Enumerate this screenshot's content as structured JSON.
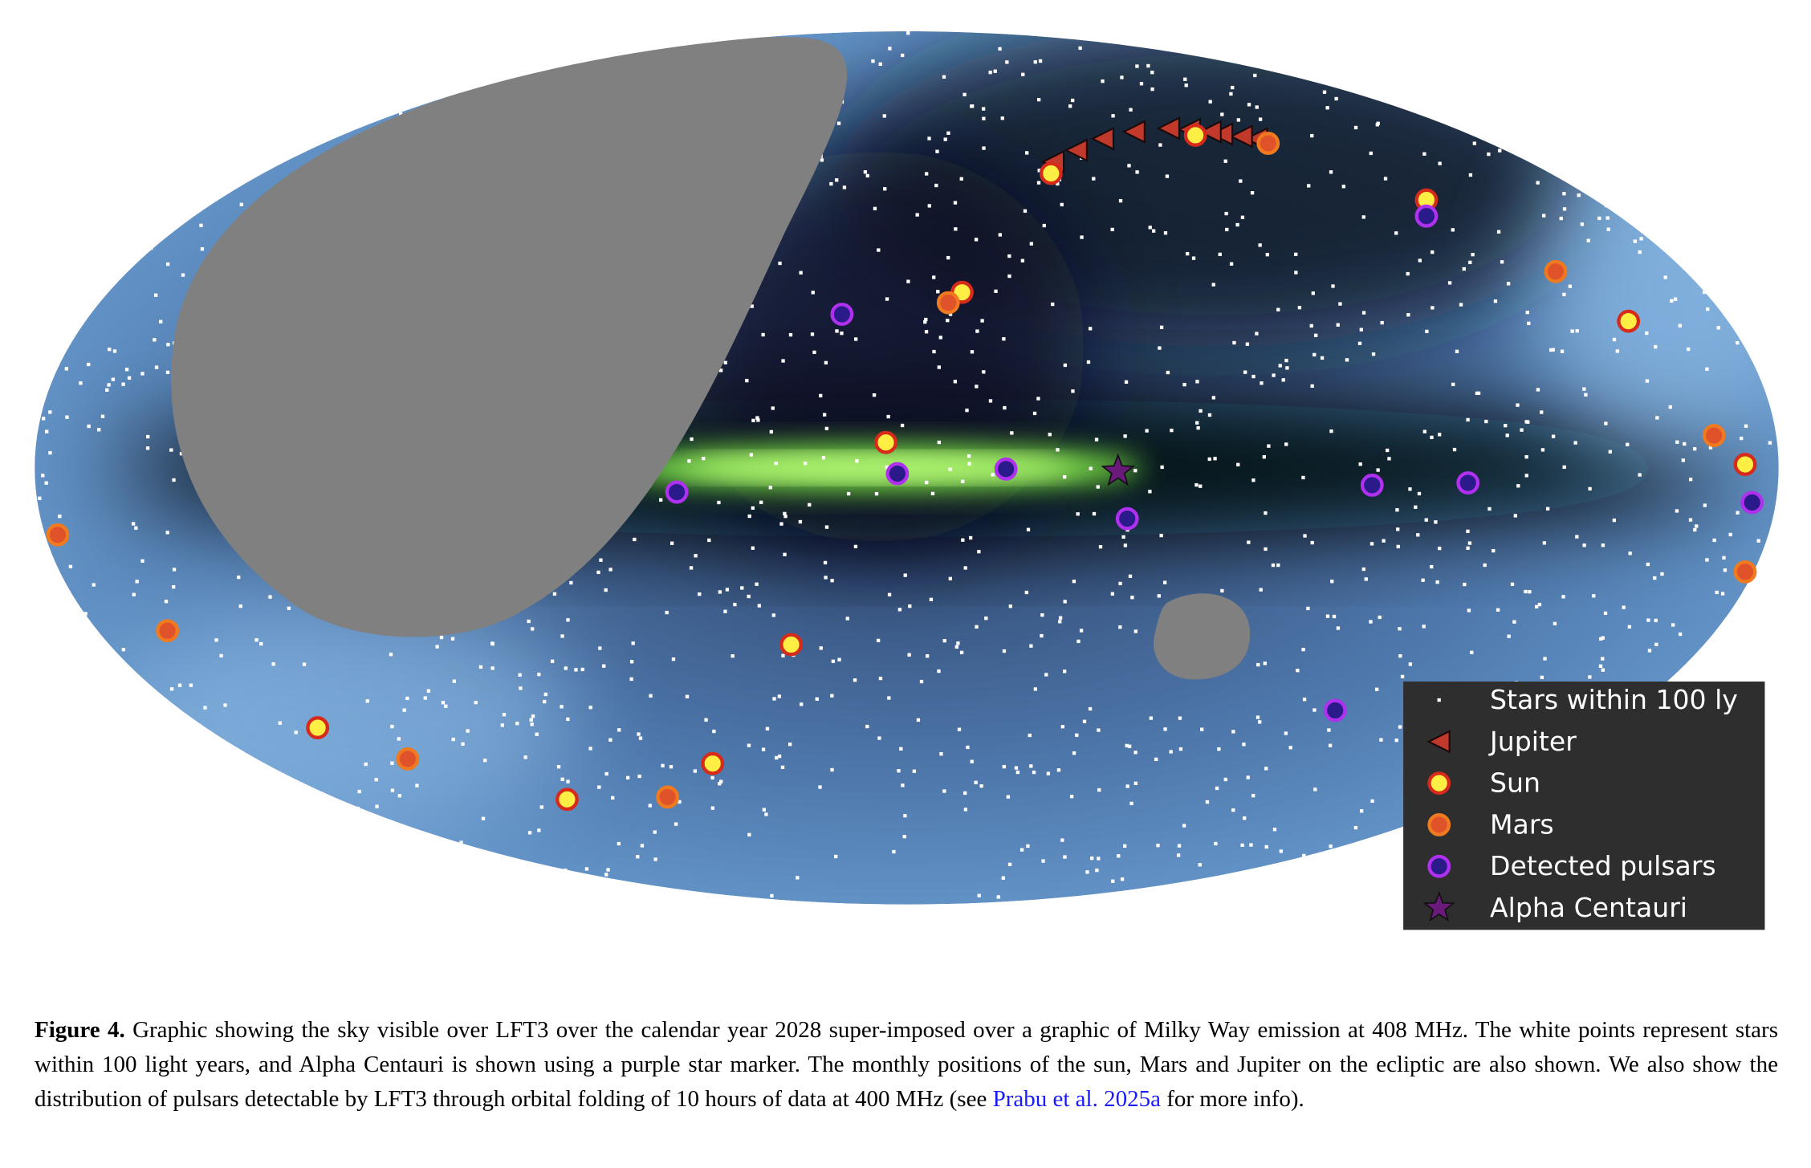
{
  "figure": {
    "legend": [
      "Stars within 100 ly",
      "Jupiter",
      "Sun",
      "Mars",
      "Detected pulsars",
      "Alpha Centauri"
    ],
    "caption": {
      "label": "Figure 4.",
      "text_before": " Graphic showing the sky visible over LFT3 over the calendar year 2028 super-imposed over a graphic of Milky Way emission at 408 MHz. The white points represent stars within 100 light years, and Alpha Centauri is shown using a purple star marker. The monthly positions of the sun, Mars and Jupiter on the ecliptic are also shown. We also show the distribution of pulsars detectable by LFT3 through orbital folding of 10 hours of data at 400 MHz (see ",
      "link": "Prabu et al. 2025a",
      "text_after": " for more info)."
    }
  }
}
